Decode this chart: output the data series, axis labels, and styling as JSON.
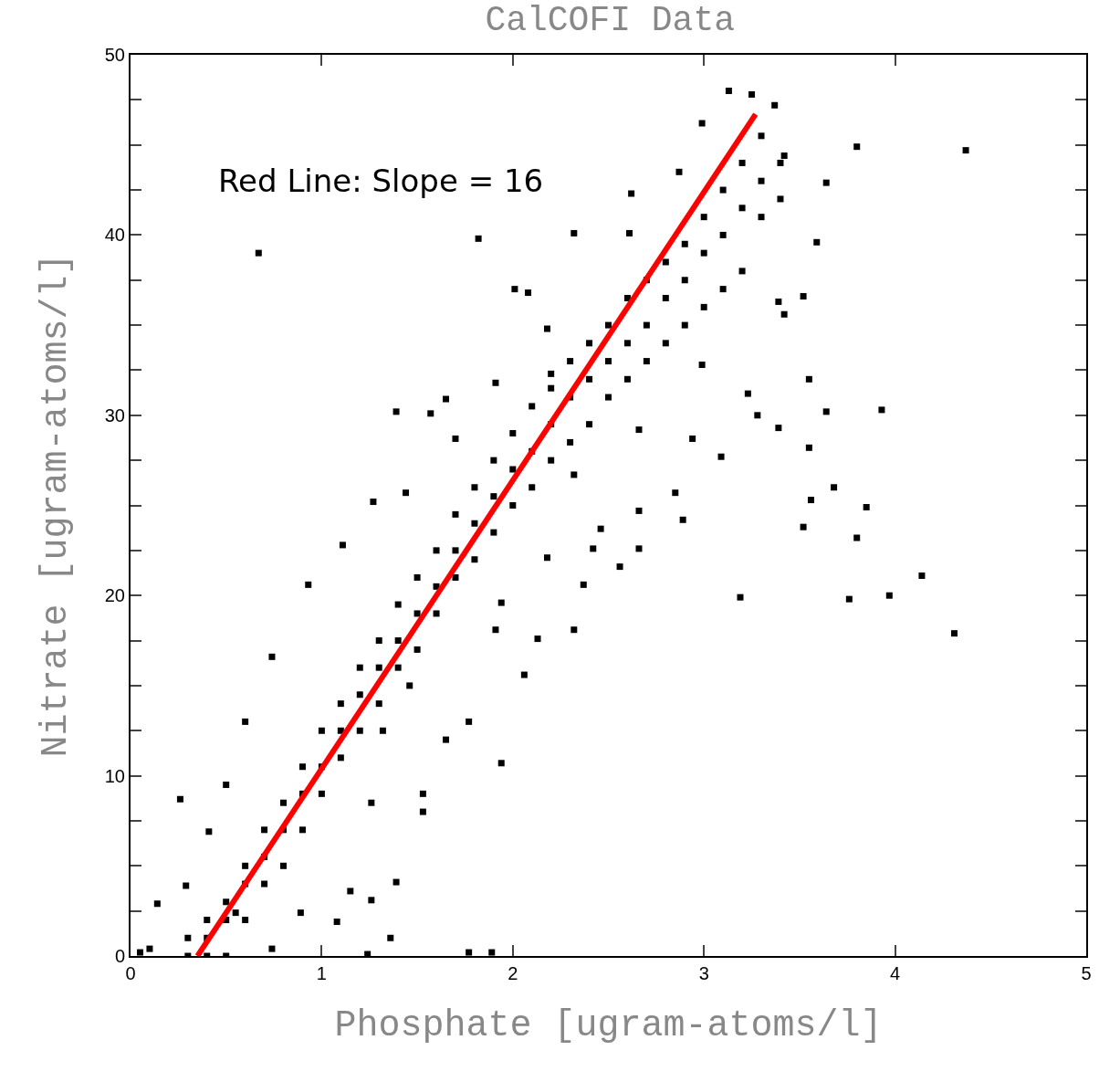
{
  "chart_data": {
    "type": "scatter",
    "title": "CalCOFI Data",
    "xlabel": "Phosphate [ugram-atoms/l]",
    "ylabel": "Nitrate [ugram-atoms/l]",
    "grid": false,
    "xlim": [
      0,
      5
    ],
    "xticks": [
      0,
      1,
      2,
      3,
      4,
      5
    ],
    "ylim": [
      0,
      50
    ],
    "yticks": [
      0,
      {
        "value": 2.5,
        "label": null
      },
      {
        "value": 5,
        "label": null
      },
      {
        "value": 7.5,
        "label": null
      },
      10,
      {
        "value": 12.5,
        "label": null
      },
      {
        "value": 15,
        "label": null
      },
      {
        "value": 17.5,
        "label": null
      },
      20,
      {
        "value": 22.5,
        "label": null
      },
      {
        "value": 25,
        "label": null
      },
      {
        "value": 27.5,
        "label": null
      },
      30,
      {
        "value": 32.5,
        "label": null
      },
      {
        "value": 35,
        "label": null
      },
      {
        "value": 37.5,
        "label": null
      },
      40,
      {
        "value": 42.5,
        "label": null
      },
      {
        "value": 45,
        "label": null
      },
      {
        "value": 47.5,
        "label": null
      },
      50
    ],
    "annotations": [
      "Red Line: Slope = 16"
    ],
    "series": [
      {
        "marker": "square",
        "color": "#000000",
        "x": [
          0.67,
          1.82,
          2.01,
          2.32,
          3.8,
          4.37,
          1.39,
          1.57,
          1.65,
          1.11,
          3.64,
          3.93,
          3.55,
          3.68,
          3.85,
          3.52,
          3.56,
          3.8,
          3.19,
          3.76,
          3.97,
          4.14,
          4.31,
          3.23,
          3.28,
          3.39,
          3.55,
          3.09,
          2.94,
          2.85,
          2.66,
          2.42,
          2.32,
          2.13,
          2.06,
          1.91,
          1.94,
          1.77,
          1.65,
          1.53,
          1.53,
          1.26,
          1.15,
          1.26,
          1.39,
          1.36,
          1.24,
          1.77,
          1.89,
          0.14,
          0.26,
          0.1,
          0.05,
          3.39,
          3.52,
          3.42,
          3.59,
          3.64,
          3.42,
          3.13,
          3.25,
          3.37,
          2.99,
          2.61,
          2.87,
          2.62,
          2.08,
          2.18,
          2.2,
          1.91,
          1.7,
          1.44,
          1.27,
          0.93,
          0.74,
          0.6,
          0.5,
          0.41,
          0.29,
          2.66,
          2.99,
          2.32,
          2.37,
          2.18,
          2.46,
          2.56,
          1.94,
          2.66,
          2.89,
          1.46,
          1.32,
          0.89,
          1.08,
          0.74,
          0.55,
          0.3,
          0.3,
          0.4,
          0.4,
          0.4,
          0.5,
          0.5,
          0.5,
          0.6,
          0.6,
          0.6,
          0.7,
          0.7,
          0.7,
          0.8,
          0.8,
          0.8,
          0.9,
          0.9,
          0.9,
          1.0,
          1.0,
          1.0,
          1.1,
          1.1,
          1.1,
          1.2,
          1.2,
          1.2,
          1.3,
          1.3,
          1.3,
          1.4,
          1.4,
          1.4,
          1.5,
          1.5,
          1.5,
          1.6,
          1.6,
          1.6,
          1.7,
          1.7,
          1.7,
          1.8,
          1.8,
          1.8,
          1.9,
          1.9,
          1.9,
          2.0,
          2.0,
          2.0,
          2.1,
          2.1,
          2.1,
          2.2,
          2.2,
          2.2,
          2.3,
          2.3,
          2.3,
          2.4,
          2.4,
          2.4,
          2.5,
          2.5,
          2.5,
          2.6,
          2.6,
          2.6,
          2.7,
          2.7,
          2.7,
          2.8,
          2.8,
          2.8,
          2.9,
          2.9,
          2.9,
          3.0,
          3.0,
          3.0,
          3.1,
          3.1,
          3.1,
          3.2,
          3.2,
          3.2,
          3.3,
          3.3,
          3.3,
          3.4,
          3.4
        ],
        "values": [
          39.0,
          39.8,
          37.0,
          40.1,
          44.9,
          44.7,
          30.2,
          30.1,
          30.9,
          22.8,
          30.2,
          30.3,
          28.2,
          26.0,
          24.9,
          23.8,
          25.3,
          23.2,
          19.9,
          19.8,
          20.0,
          21.1,
          17.9,
          31.2,
          30.0,
          29.3,
          32.0,
          27.7,
          28.7,
          25.7,
          24.7,
          22.6,
          18.1,
          17.6,
          15.6,
          18.1,
          10.7,
          13.0,
          12.0,
          9.0,
          8.0,
          8.5,
          3.6,
          3.1,
          4.1,
          1.0,
          0.1,
          0.2,
          0.2,
          2.9,
          8.7,
          0.4,
          0.2,
          36.3,
          36.6,
          35.6,
          39.6,
          42.9,
          44.4,
          48.0,
          47.8,
          47.2,
          46.2,
          40.1,
          43.5,
          42.3,
          36.8,
          34.8,
          32.3,
          31.8,
          28.7,
          25.7,
          25.2,
          20.6,
          16.6,
          13.0,
          9.5,
          6.9,
          3.9,
          29.2,
          32.8,
          26.7,
          20.6,
          22.1,
          23.7,
          21.6,
          19.6,
          22.6,
          24.2,
          15.0,
          12.5,
          2.4,
          1.9,
          0.4,
          2.4,
          0,
          1,
          0,
          2,
          1,
          0,
          3,
          2,
          2,
          5,
          4,
          4,
          7,
          5.5,
          5,
          8.5,
          7,
          7,
          10.5,
          9,
          9,
          12.5,
          10.5,
          11,
          14,
          12.5,
          12.5,
          16,
          14.5,
          14,
          17.5,
          16,
          16,
          19.5,
          17.5,
          17,
          21,
          19,
          19,
          22.5,
          20.5,
          21,
          24.5,
          22.5,
          22,
          26,
          24,
          23.5,
          27.5,
          25.5,
          25,
          29,
          27,
          26,
          30.5,
          28,
          27.5,
          31.5,
          29.5,
          28.5,
          33,
          31,
          29.5,
          34,
          32,
          31,
          35,
          33,
          32,
          36.5,
          34,
          33,
          37.5,
          35,
          34,
          38.5,
          36.5,
          35,
          39.5,
          37.5,
          36,
          41,
          39,
          37,
          42.5,
          40,
          38,
          44,
          41.5,
          41,
          45.5,
          43,
          42,
          44
        ]
      },
      {
        "type": "line",
        "color": "#ff0000",
        "x": [
          0.35,
          3.27
        ],
        "values": [
          0,
          46.7
        ]
      }
    ]
  }
}
